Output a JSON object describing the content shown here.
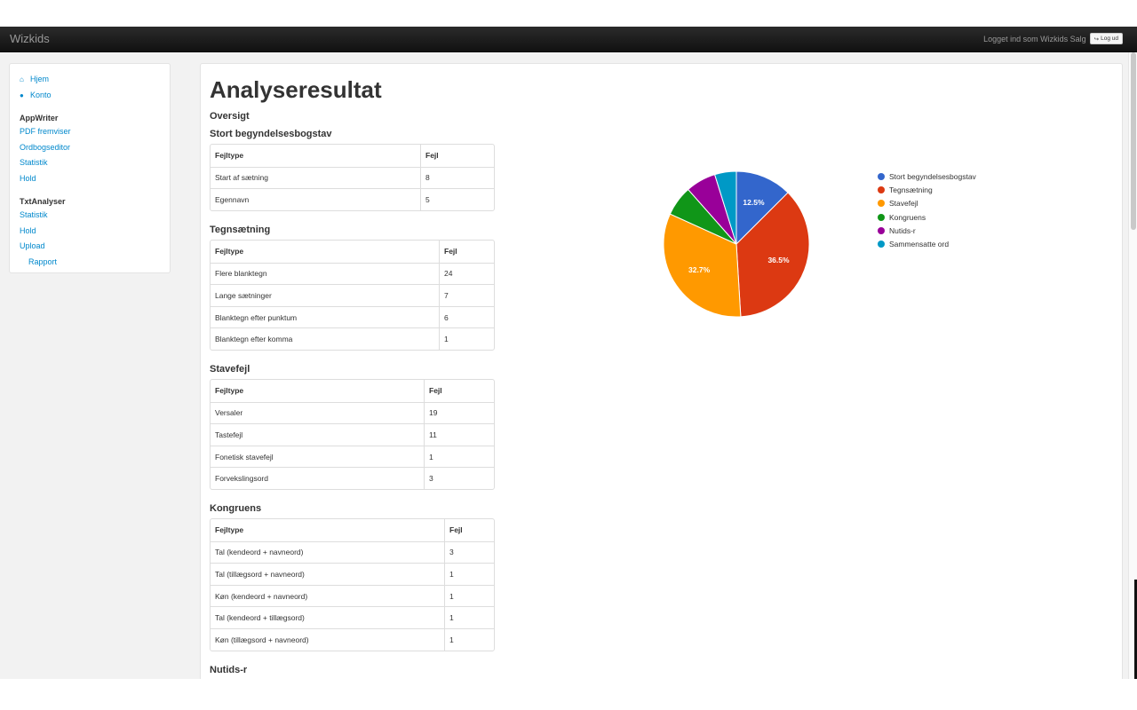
{
  "navbar": {
    "brand": "Wizkids",
    "logged_in_text": "Logget ind som Wizkids Salg",
    "logout_label": "Log ud"
  },
  "sidebar": {
    "top_links": [
      {
        "label": "Hjem",
        "icon": "home-icon"
      },
      {
        "label": "Konto",
        "icon": "user-icon"
      }
    ],
    "appwriter_header": "AppWriter",
    "appwriter_links": [
      "PDF fremviser",
      "Ordbogseditor",
      "Statistik",
      "Hold"
    ],
    "txtanalyser_header": "TxtAnalyser",
    "txtanalyser_links": [
      "Statistik",
      "Hold",
      "Upload"
    ],
    "txtanalyser_sub": "Rapport"
  },
  "main": {
    "title": "Analyseresultat",
    "overview": "Oversigt",
    "col_type": "Fejltype",
    "col_count": "Fejl",
    "sections": [
      {
        "title": "Stort begyndelsesbogstav",
        "rows": [
          [
            "Start af sætning",
            "8"
          ],
          [
            "Egennavn",
            "5"
          ]
        ]
      },
      {
        "title": "Tegnsætning",
        "rows": [
          [
            "Flere blanktegn",
            "24"
          ],
          [
            "Lange sætninger",
            "7"
          ],
          [
            "Blanktegn efter punktum",
            "6"
          ],
          [
            "Blanktegn efter komma",
            "1"
          ]
        ]
      },
      {
        "title": "Stavefejl",
        "rows": [
          [
            "Versaler",
            "19"
          ],
          [
            "Tastefejl",
            "11"
          ],
          [
            "Fonetisk stavefejl",
            "1"
          ],
          [
            "Forvekslingsord",
            "3"
          ]
        ]
      },
      {
        "title": "Kongruens",
        "rows": [
          [
            "Tal (kendeord + navneord)",
            "3"
          ],
          [
            "Tal (tillægsord + navneord)",
            "1"
          ],
          [
            "Køn (kendeord + navneord)",
            "1"
          ],
          [
            "Tal (kendeord + tillægsord)",
            "1"
          ],
          [
            "Køn (tillægsord + navneord)",
            "1"
          ]
        ]
      },
      {
        "title": "Nutids-r",
        "rows": []
      }
    ]
  },
  "chart_data": {
    "type": "pie",
    "categories": [
      "Stort begyndelsesbogstav",
      "Tegnsætning",
      "Stavefejl",
      "Kongruens",
      "Nutids-r",
      "Sammensatte ord"
    ],
    "values": [
      12.5,
      36.5,
      32.7,
      6.7,
      6.7,
      4.8
    ],
    "slice_labels": [
      "12.5%",
      "36.5%",
      "32.7%",
      "",
      "",
      ""
    ],
    "colors": [
      "#3366cc",
      "#dc3912",
      "#ff9900",
      "#109618",
      "#990099",
      "#0099c6"
    ],
    "legend_position": "right"
  }
}
